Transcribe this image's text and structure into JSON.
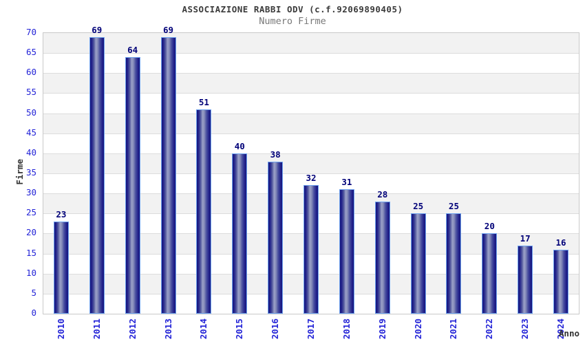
{
  "chart_data": {
    "type": "bar",
    "title": "ASSOCIAZIONE RABBI ODV (c.f.92069890405)",
    "subtitle": "Numero Firme",
    "categories": [
      "2010",
      "2011",
      "2012",
      "2013",
      "2014",
      "2015",
      "2016",
      "2017",
      "2018",
      "2019",
      "2020",
      "2021",
      "2022",
      "2023",
      "2024"
    ],
    "values": [
      23,
      69,
      64,
      69,
      51,
      40,
      38,
      32,
      31,
      28,
      25,
      25,
      20,
      17,
      16
    ],
    "xlabel": "Anno",
    "ylabel": "Firme",
    "ylim": [
      0,
      70
    ],
    "ytick_step": 5,
    "grid": "horizontal-bands-alternating",
    "legend_position": "none",
    "value_labels": "above-bars",
    "colors": {
      "bar_gradient_edge": "#16167d",
      "bar_gradient_mid": "#9ba1c8",
      "bar_border": "#6fa3ef",
      "value_label": "#000078",
      "axis_tick_label": "#2323d7",
      "band_shaded": "#f2f2f2",
      "band_plain": "#ffffff",
      "gridline": "#dcdcdc",
      "plot_border": "#c9c9c9",
      "title": "#3a3a3a",
      "subtitle": "#777777",
      "axis_title": "#333333"
    }
  }
}
